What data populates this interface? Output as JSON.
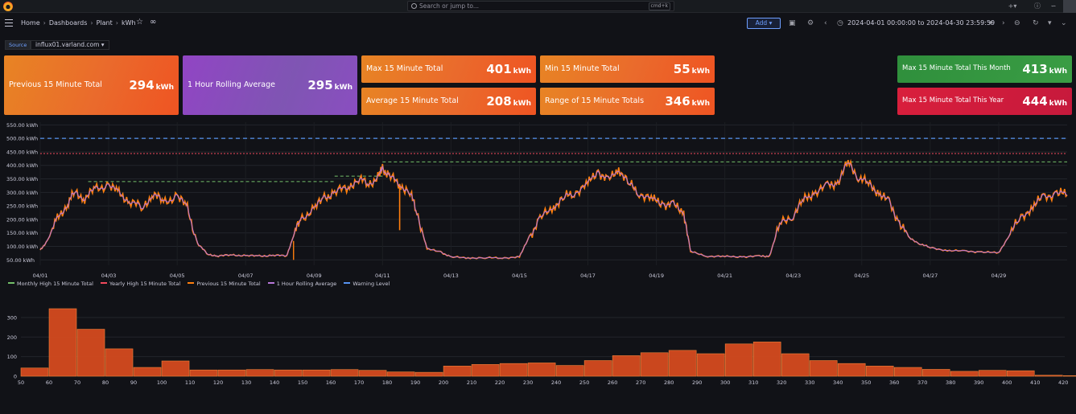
{
  "topbar": {
    "search_placeholder": "Search or jump to...",
    "search_shortcut": "cmd+k",
    "plus_label": "+",
    "help_icon": "help-icon",
    "news_icon": "rss-icon"
  },
  "nav": {
    "breadcrumbs": [
      "Home",
      "Dashboards",
      "Plant",
      "kWh"
    ],
    "add_label": "Add",
    "time_range": "2024-04-01 00:00:00 to 2024-04-30 23:59:59"
  },
  "source": {
    "label": "Source",
    "value": "influx01.varland.com"
  },
  "stats": {
    "prev15": {
      "label": "Previous 15 Minute Total",
      "value": "294",
      "unit": "kWh"
    },
    "rolling": {
      "label": "1 Hour Rolling Average",
      "value": "295",
      "unit": "kWh"
    },
    "max15": {
      "label": "Max 15 Minute Total",
      "value": "401",
      "unit": "kWh"
    },
    "min15": {
      "label": "Min 15 Minute Total",
      "value": "55",
      "unit": "kWh"
    },
    "avg15": {
      "label": "Average 15 Minute Total",
      "value": "208",
      "unit": "kWh"
    },
    "range15": {
      "label": "Range of 15 Minute Totals",
      "value": "346",
      "unit": "kWh"
    },
    "max_month": {
      "label": "Max 15 Minute Total This Month",
      "value": "413",
      "unit": "kWh"
    },
    "max_year": {
      "label": "Max 15 Minute Total This Year",
      "value": "444",
      "unit": "kWh"
    }
  },
  "colors": {
    "orange": "#ff7f0e",
    "purple": "#b877d9",
    "green": "#73bf69",
    "red": "#f2495c",
    "blue": "#5794f2",
    "bar_fill": "#d44a1f",
    "bar_edge": "#ff8a3d"
  },
  "chart_data": [
    {
      "type": "line",
      "title": "",
      "y_ticks": [
        "550.00 kWh",
        "500.00 kWh",
        "450.00 kWh",
        "400.00 kWh",
        "350.00 kWh",
        "300.00 kWh",
        "250.00 kWh",
        "200.00 kWh",
        "150.00 kWh",
        "100.00 kWh",
        "50.00 kWh"
      ],
      "y_tick_values": [
        550,
        500,
        450,
        400,
        350,
        300,
        250,
        200,
        150,
        100,
        50
      ],
      "ylim": [
        30,
        560
      ],
      "x_ticks": [
        "04/01",
        "04/03",
        "04/05",
        "04/07",
        "04/09",
        "04/11",
        "04/13",
        "04/15",
        "04/17",
        "04/19",
        "04/21",
        "04/23",
        "04/25",
        "04/27",
        "04/29"
      ],
      "x_tick_days": [
        1,
        3,
        5,
        7,
        9,
        11,
        13,
        15,
        17,
        19,
        21,
        23,
        25,
        27,
        29
      ],
      "xlim": [
        1,
        31
      ],
      "legend": [
        "Monthly High 15 Minute Total",
        "Yearly High 15 Minute Total",
        "Previous 15 Minute Total",
        "1 Hour Rolling Average",
        "Warning Level"
      ],
      "thresholds": {
        "warning": 500,
        "yearly_high": 444,
        "monthly_high": 413
      },
      "series_days": [
        1,
        1.2,
        1.5,
        1.8,
        2,
        2.3,
        2.6,
        3,
        3.3,
        3.6,
        4,
        4.3,
        4.6,
        5,
        5.3,
        5.6,
        5.9,
        6.2,
        6.6,
        7,
        7.4,
        7.8,
        8.2,
        8.4,
        8.6,
        9,
        9.3,
        9.6,
        10,
        10.3,
        10.6,
        10.9,
        11,
        11.2,
        11.5,
        11.8,
        12,
        12.3,
        12.7,
        13,
        13.5,
        14,
        14.5,
        15,
        15.3,
        15.6,
        16,
        16.3,
        16.6,
        17,
        17.3,
        17.6,
        17.9,
        18.2,
        18.5,
        18.9,
        19.2,
        19.5,
        19.8,
        20,
        20.5,
        21,
        21.5,
        22,
        22.3,
        22.6,
        23,
        23.3,
        23.6,
        24,
        24.3,
        24.6,
        24.9,
        25.2,
        25.5,
        25.8,
        26.1,
        26.4,
        26.7,
        27,
        27.5,
        28,
        28.5,
        29,
        29.3,
        29.6,
        30,
        30.3,
        30.7,
        31
      ],
      "series_values": [
        85,
        120,
        200,
        260,
        300,
        280,
        310,
        330,
        295,
        270,
        240,
        300,
        260,
        290,
        240,
        110,
        70,
        65,
        68,
        66,
        64,
        67,
        65,
        140,
        200,
        240,
        280,
        300,
        320,
        350,
        330,
        360,
        390,
        360,
        330,
        300,
        230,
        90,
        80,
        60,
        58,
        57,
        58,
        60,
        140,
        200,
        250,
        280,
        300,
        330,
        380,
        340,
        390,
        330,
        300,
        270,
        260,
        250,
        230,
        80,
        64,
        62,
        62,
        63,
        64,
        180,
        220,
        270,
        300,
        320,
        340,
        410,
        360,
        330,
        300,
        260,
        190,
        130,
        110,
        95,
        85,
        82,
        80,
        75,
        140,
        200,
        250,
        280,
        300,
        290
      ],
      "spike_day": 11.5,
      "spike_value": 160
    },
    {
      "type": "bar",
      "title": "",
      "x_ticks": [
        "50",
        "60",
        "70",
        "80",
        "90",
        "100",
        "110",
        "120",
        "130",
        "140",
        "150",
        "160",
        "170",
        "180",
        "190",
        "200",
        "210",
        "220",
        "230",
        "240",
        "250",
        "260",
        "270",
        "280",
        "290",
        "300",
        "310",
        "320",
        "330",
        "340",
        "350",
        "360",
        "370",
        "380",
        "390",
        "400",
        "410",
        "420"
      ],
      "bin_edges_start": 50,
      "bin_width": 10,
      "values": [
        42,
        345,
        240,
        140,
        45,
        78,
        32,
        32,
        34,
        32,
        32,
        34,
        30,
        22,
        20,
        52,
        60,
        65,
        68,
        55,
        80,
        105,
        120,
        132,
        115,
        165,
        175,
        115,
        80,
        65,
        52,
        45,
        35,
        25,
        30,
        28,
        5,
        3
      ],
      "y_ticks": [
        "0",
        "100",
        "200",
        "300"
      ],
      "y_tick_values": [
        0,
        100,
        200,
        300
      ],
      "ylim": [
        0,
        345
      ]
    }
  ]
}
